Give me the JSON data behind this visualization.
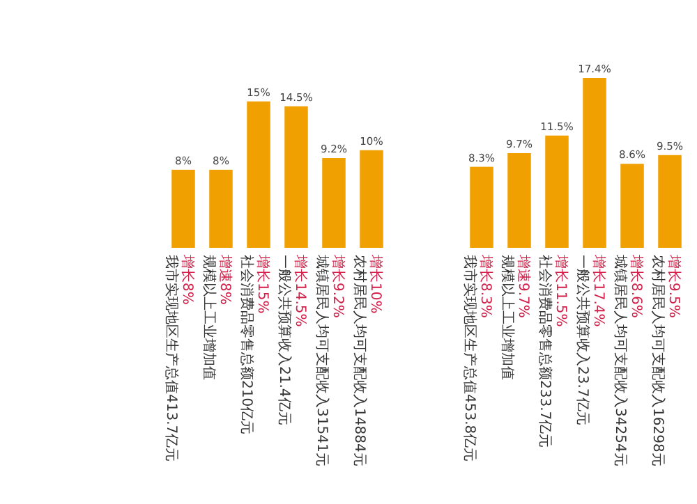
{
  "chart_data": [
    {
      "type": "bar",
      "color": "#f0a000",
      "categories": [
        "我市实现地区生产总值413.7亿元",
        "规模以上工业增加值",
        "社会消费品零售总额210亿元",
        "一般公共预算收入21.4亿元",
        "城镇居民人均可支配收入31541元",
        "农村居民人均可支配收入14884元"
      ],
      "values": [
        8,
        8,
        15,
        14.5,
        9.2,
        10
      ],
      "value_labels": [
        "8%",
        "8%",
        "15%",
        "14.5%",
        "9.2%",
        "10%"
      ],
      "annotations": [
        "增长8%",
        "增速8%",
        "增长15%",
        "增长14.5%",
        "增长9.2%",
        "增长10%"
      ]
    },
    {
      "type": "bar",
      "color": "#f0a000",
      "categories": [
        "我市实现地区生产总值453.8亿元",
        "规模以上工业增加值",
        "社会消费品零售总额233.7亿元",
        "一般公共预算收入23.7亿元",
        "城镇居民人均可支配收入34254元",
        "农村居民人均可支配收入16298元"
      ],
      "values": [
        8.3,
        9.7,
        11.5,
        17.4,
        8.6,
        9.5
      ],
      "value_labels": [
        "8.3%",
        "9.7%",
        "11.5%",
        "17.4%",
        "8.6%",
        "9.5%"
      ],
      "annotations": [
        "增长8.3%",
        "增速9.7%",
        "增长11.5%",
        "增长17.4%",
        "增长8.6%",
        "增长9.5%"
      ]
    }
  ]
}
